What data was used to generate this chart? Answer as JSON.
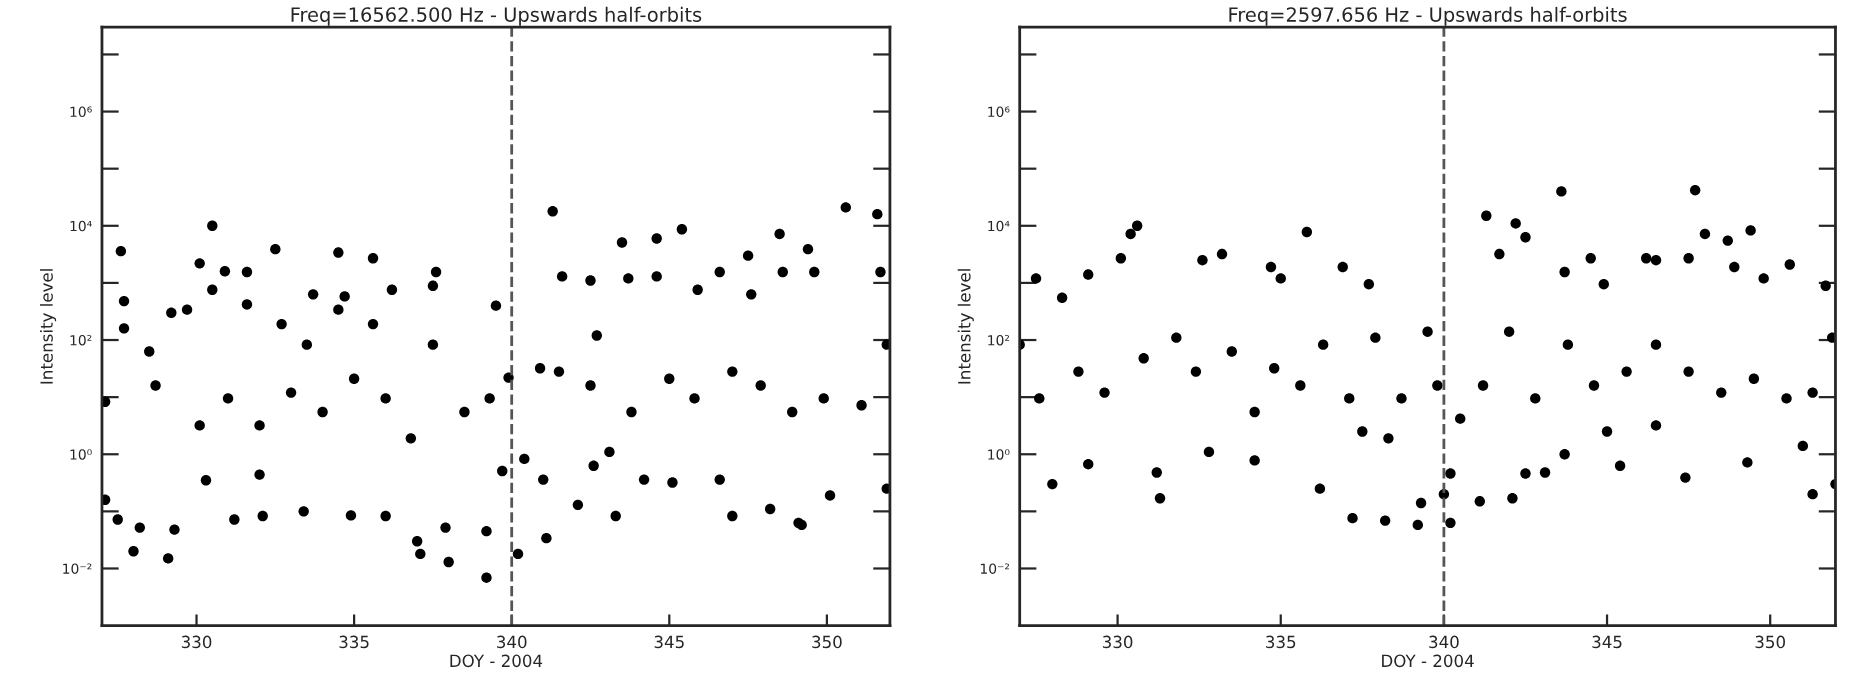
{
  "chart_data": [
    {
      "type": "scatter",
      "title": "Freq=16562.500 Hz - Upswards half-orbits",
      "xlabel": "DOY - 2004",
      "ylabel": "Intensity level",
      "log": "y",
      "marker": "circle",
      "grid": false,
      "legend": false,
      "xlim": [
        327,
        352
      ],
      "xticks": [
        330,
        335,
        340,
        345,
        350
      ],
      "ylim": [
        0.001,
        30000000
      ],
      "yticks": [
        {
          "value": 0.01,
          "label": "10⁻²"
        },
        {
          "value": 0.1,
          "label": null
        },
        {
          "value": 1,
          "label": "10⁰"
        },
        {
          "value": 10,
          "label": null
        },
        {
          "value": 100,
          "label": "10²"
        },
        {
          "value": 1000,
          "label": null
        },
        {
          "value": 10000,
          "label": "10⁴"
        },
        {
          "value": 100000,
          "label": null
        },
        {
          "value": 1000000,
          "label": "10⁶"
        },
        {
          "value": 10000000,
          "label": null
        }
      ],
      "ref_lines": [
        {
          "axis": "x",
          "value": 340,
          "line_style": "dashed",
          "color": "#555555"
        }
      ],
      "series": [
        {
          "color": "#000000",
          "x": [
            327.6,
            327.7,
            327.7,
            327.1,
            327.1,
            327.5,
            328.0,
            328.2,
            328.5,
            329.1,
            329.3,
            329.2,
            329.7,
            330.1,
            330.5,
            330.5,
            330.9,
            330.3,
            331.2,
            331.6,
            331.6,
            332.0,
            332.5,
            332.1,
            332.7,
            333.4,
            333.7,
            334.5,
            334.5,
            334.7,
            334.9,
            335.6,
            335.6,
            336.2,
            336.0,
            337.0,
            337.1,
            337.6,
            337.5,
            337.9,
            338.0,
            339.2,
            339.2,
            339.5,
            339.9,
            339.7,
            340.2,
            341.1,
            341.3,
            341.6,
            340.9,
            341.0,
            342.1,
            342.5,
            342.7,
            343.3,
            343.5,
            343.7,
            344.2,
            344.6,
            344.6,
            345.4,
            345.1,
            345.9,
            346.6,
            347.0,
            347.5,
            347.6,
            348.5,
            348.2,
            348.6,
            349.1,
            349.2,
            349.4,
            349.6,
            350.1,
            350.6,
            351.6,
            351.7,
            351.9,
            328.7,
            330.1,
            331.0,
            332.0,
            333.0,
            334.0,
            335.0,
            336.0,
            336.8,
            338.5,
            339.3,
            340.4,
            341.5,
            342.5,
            343.1,
            343.8,
            345.0,
            345.8,
            347.0,
            347.9,
            348.9,
            349.9,
            351.1,
            351.9,
            337.5,
            333.5,
            342.6,
            346.6
          ],
          "values": [
            3600,
            480,
            160,
            8.3,
            0.16,
            0.072,
            0.02,
            0.052,
            63,
            0.015,
            0.048,
            300,
            340,
            2200,
            10000,
            760,
            1600,
            0.35,
            0.072,
            1550,
            420,
            0.44,
            3900,
            0.083,
            190,
            0.1,
            630,
            340,
            3400,
            580,
            0.085,
            2700,
            190,
            760,
            0.083,
            0.03,
            0.018,
            1550,
            890,
            0.052,
            0.013,
            0.0069,
            0.045,
            400,
            22,
            0.51,
            0.018,
            0.034,
            18000,
            1300,
            32,
            0.36,
            0.13,
            1100,
            120,
            0.083,
            5100,
            1200,
            0.36,
            6000,
            1300,
            8700,
            0.32,
            760,
            1550,
            0.083,
            3000,
            630,
            7200,
            0.11,
            1550,
            0.063,
            0.058,
            3900,
            1550,
            0.19,
            21000,
            16000,
            1550,
            0.25,
            16,
            3.2,
            9.5,
            3.2,
            12,
            5.5,
            21,
            9.5,
            1.9,
            5.5,
            9.5,
            0.83,
            28,
            16,
            1.1,
            5.5,
            21,
            9.5,
            28,
            16,
            5.5,
            9.5,
            7.2,
            83,
            83,
            83,
            0.63,
            0.36
          ]
        }
      ]
    },
    {
      "type": "scatter",
      "title": "Freq=2597.656 Hz - Upswards half-orbits",
      "xlabel": "DOY - 2004",
      "ylabel": "Intensity level",
      "log": "y",
      "marker": "circle",
      "grid": false,
      "legend": false,
      "xlim": [
        327,
        352
      ],
      "xticks": [
        330,
        335,
        340,
        345,
        350
      ],
      "ylim": [
        0.001,
        30000000
      ],
      "yticks": [
        {
          "value": 0.01,
          "label": "10⁻²"
        },
        {
          "value": 0.1,
          "label": null
        },
        {
          "value": 1,
          "label": "10⁰"
        },
        {
          "value": 10,
          "label": null
        },
        {
          "value": 100,
          "label": "10²"
        },
        {
          "value": 1000,
          "label": null
        },
        {
          "value": 10000,
          "label": "10⁴"
        },
        {
          "value": 100000,
          "label": null
        },
        {
          "value": 1000000,
          "label": "10⁶"
        },
        {
          "value": 10000000,
          "label": null
        }
      ],
      "ref_lines": [
        {
          "axis": "x",
          "value": 340,
          "line_style": "dashed",
          "color": "#555555"
        }
      ],
      "series": [
        {
          "color": "#000000",
          "x": [
            330.6,
            330.4,
            330.1,
            329.1,
            327.5,
            328.0,
            329.1,
            327.0,
            328.3,
            331.3,
            331.2,
            332.6,
            333.2,
            332.8,
            334.2,
            334.7,
            335.0,
            335.8,
            336.2,
            336.9,
            337.2,
            337.7,
            338.2,
            339.2,
            339.3,
            340.0,
            340.2,
            340.2,
            341.1,
            341.3,
            341.7,
            342.1,
            342.2,
            342.5,
            342.5,
            343.6,
            343.7,
            343.1,
            344.5,
            344.9,
            343.7,
            345.4,
            346.2,
            346.5,
            347.4,
            347.7,
            347.5,
            348.0,
            348.7,
            349.4,
            348.9,
            349.3,
            349.8,
            350.6,
            351.3,
            351.7,
            352.0,
            351.0,
            327.6,
            328.8,
            329.6,
            330.8,
            331.8,
            332.4,
            333.5,
            334.2,
            334.8,
            335.6,
            336.3,
            337.1,
            337.9,
            338.7,
            339.5,
            339.8,
            340.5,
            341.2,
            342.0,
            342.8,
            343.8,
            344.6,
            345.6,
            346.5,
            347.5,
            348.5,
            349.5,
            350.5,
            351.3,
            351.9,
            346.5,
            345.0,
            337.5,
            338.3
          ],
          "values": [
            10000,
            7200,
            2700,
            1400,
            1200,
            0.3,
            0.67,
            83,
            550,
            0.17,
            0.48,
            2500,
            3200,
            1.1,
            0.78,
            1900,
            1200,
            7800,
            0.25,
            1900,
            0.076,
            950,
            0.069,
            0.058,
            0.14,
            0.2,
            0.063,
            0.46,
            0.15,
            15000,
            3200,
            0.17,
            11000,
            6300,
            0.46,
            40000,
            1550,
            0.48,
            2700,
            950,
            1.0,
            0.63,
            2700,
            2500,
            0.39,
            42000,
            2700,
            7200,
            5500,
            8300,
            1900,
            0.72,
            1200,
            2100,
            0.2,
            890,
            0.3,
            1.4,
            9.5,
            28,
            12,
            48,
            110,
            28,
            63,
            5.5,
            32,
            16,
            83,
            9.5,
            110,
            9.5,
            140,
            16,
            4.2,
            16,
            140,
            9.5,
            83,
            16,
            28,
            83,
            28,
            12,
            21,
            9.5,
            12,
            110,
            3.2,
            2.5,
            2.5,
            1.9
          ]
        }
      ]
    }
  ]
}
